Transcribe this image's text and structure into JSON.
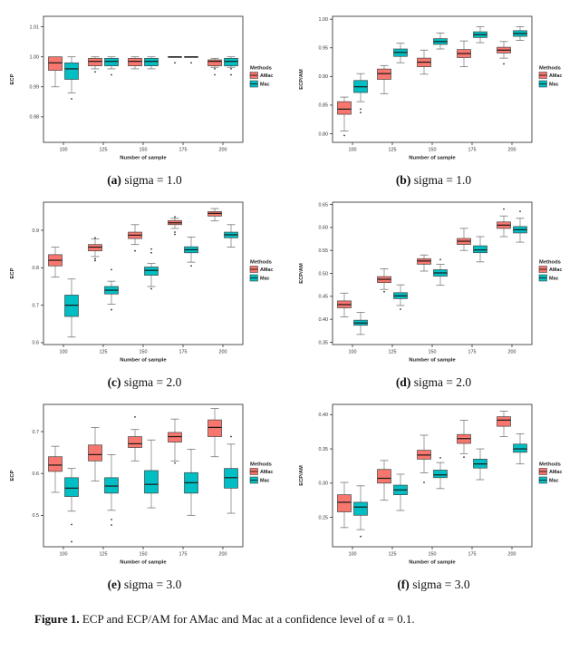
{
  "figure_caption": {
    "label": "Figure 1.",
    "text": " ECP and ECP/AM for AMac and Mac at a confidence level of α = 0.1."
  },
  "legend": {
    "title": "Methods",
    "entries": [
      {
        "label": "AMac",
        "color": "#F8766D"
      },
      {
        "label": "Mac",
        "color": "#00BFC4"
      }
    ]
  },
  "colors": {
    "amac": "#F8766D",
    "mac": "#00BFC4",
    "box_stroke": "#444444",
    "median": "#1a1a1a",
    "whisker": "#777777",
    "panel_border": "#3c3c3c"
  },
  "chart_data": [
    {
      "id": "a",
      "type": "boxplot",
      "caption_label": "(a)",
      "caption_text": " sigma = 1.0",
      "title": "",
      "xlabel": "Number of sample",
      "ylabel": "ECP",
      "categories": [
        "100",
        "125",
        "150",
        "175",
        "200"
      ],
      "ylim": [
        0.9715,
        1.0135
      ],
      "yticks": [
        1.01,
        1.0,
        0.99,
        0.98
      ],
      "ytick_labels": [
        "1.01",
        "1.00",
        "0.99",
        "0.98"
      ],
      "legend_position": "right",
      "grid": false,
      "series": [
        {
          "name": "AMac",
          "boxes": [
            [
              0.99,
              0.9955,
              0.998,
              1.0,
              1.0
            ],
            [
              0.996,
              0.997,
              0.9985,
              0.9995,
              1.0
            ],
            [
              0.996,
              0.997,
              0.9985,
              0.9995,
              1.0
            ],
            [
              1.0,
              1.0,
              1.0,
              1.0,
              1.0
            ],
            [
              0.9965,
              0.997,
              0.9985,
              0.999,
              0.9995
            ]
          ],
          "outliers": [
            [],
            [
              0.995
            ],
            [],
            [
              0.998
            ],
            [
              0.996,
              0.994
            ]
          ]
        },
        {
          "name": "Mac",
          "boxes": [
            [
              0.988,
              0.9925,
              0.996,
              0.998,
              1.0
            ],
            [
              0.996,
              0.997,
              0.9985,
              0.9995,
              1.0
            ],
            [
              0.996,
              0.997,
              0.9985,
              0.9995,
              1.0
            ],
            [
              1.0,
              1.0,
              1.0,
              1.0,
              1.0
            ],
            [
              0.9965,
              0.997,
              0.9985,
              0.9995,
              1.0
            ]
          ],
          "outliers": [
            [
              0.986
            ],
            [
              0.994
            ],
            [],
            [
              0.998
            ],
            [
              0.996,
              0.994
            ]
          ]
        }
      ]
    },
    {
      "id": "b",
      "type": "boxplot",
      "caption_label": "(b)",
      "caption_text": " sigma = 1.0",
      "title": "",
      "xlabel": "Number of sample",
      "ylabel": "ECP/AM",
      "categories": [
        "100",
        "125",
        "150",
        "175",
        "200"
      ],
      "ylim": [
        0.785,
        1.005
      ],
      "yticks": [
        1.0,
        0.95,
        0.9,
        0.85,
        0.8
      ],
      "ytick_labels": [
        "1.00",
        "0.95",
        "0.90",
        "0.85",
        "0.80"
      ],
      "legend_position": "right",
      "grid": false,
      "series": [
        {
          "name": "AMac",
          "boxes": [
            [
              0.805,
              0.834,
              0.843,
              0.856,
              0.864
            ],
            [
              0.87,
              0.895,
              0.905,
              0.913,
              0.919
            ],
            [
              0.904,
              0.917,
              0.925,
              0.932,
              0.946
            ],
            [
              0.917,
              0.933,
              0.94,
              0.947,
              0.962
            ],
            [
              0.932,
              0.941,
              0.946,
              0.951,
              0.961
            ]
          ],
          "outliers": [
            [
              0.797
            ],
            [],
            [],
            [],
            [
              0.922
            ]
          ]
        },
        {
          "name": "Mac",
          "boxes": [
            [
              0.856,
              0.872,
              0.882,
              0.893,
              0.905
            ],
            [
              0.924,
              0.935,
              0.942,
              0.948,
              0.958
            ],
            [
              0.948,
              0.956,
              0.961,
              0.966,
              0.976
            ],
            [
              0.959,
              0.968,
              0.973,
              0.978,
              0.987
            ],
            [
              0.963,
              0.97,
              0.975,
              0.98,
              0.987
            ]
          ],
          "outliers": [
            [
              0.843,
              0.837
            ],
            [],
            [],
            [],
            []
          ]
        }
      ]
    },
    {
      "id": "c",
      "type": "boxplot",
      "caption_label": "(c)",
      "caption_text": " sigma = 2.0",
      "title": "",
      "xlabel": "Number of sample",
      "ylabel": "ECP",
      "categories": [
        "100",
        "125",
        "150",
        "175",
        "200"
      ],
      "ylim": [
        0.595,
        0.975
      ],
      "yticks": [
        0.9,
        0.8,
        0.7,
        0.6
      ],
      "ytick_labels": [
        "0.9",
        "0.8",
        "0.7",
        "0.6"
      ],
      "legend_position": "right",
      "grid": false,
      "series": [
        {
          "name": "AMac",
          "boxes": [
            [
              0.775,
              0.805,
              0.82,
              0.835,
              0.855
            ],
            [
              0.83,
              0.845,
              0.855,
              0.862,
              0.877
            ],
            [
              0.862,
              0.878,
              0.887,
              0.895,
              0.915
            ],
            [
              0.905,
              0.915,
              0.92,
              0.926,
              0.932
            ],
            [
              0.925,
              0.938,
              0.945,
              0.95,
              0.958
            ]
          ],
          "outliers": [
            [],
            [
              0.88,
              0.824,
              0.819
            ],
            [
              0.845
            ],
            [
              0.936,
              0.895,
              0.889
            ],
            []
          ]
        },
        {
          "name": "Mac",
          "boxes": [
            [
              0.615,
              0.67,
              0.7,
              0.727,
              0.77
            ],
            [
              0.703,
              0.73,
              0.74,
              0.75,
              0.764
            ],
            [
              0.75,
              0.78,
              0.793,
              0.802,
              0.812
            ],
            [
              0.815,
              0.84,
              0.848,
              0.856,
              0.882
            ],
            [
              0.855,
              0.88,
              0.888,
              0.895,
              0.915
            ]
          ],
          "outliers": [
            [],
            [
              0.795,
              0.688
            ],
            [
              0.85,
              0.84,
              0.744
            ],
            [
              0.805
            ],
            []
          ]
        }
      ]
    },
    {
      "id": "d",
      "type": "boxplot",
      "caption_label": "(d)",
      "caption_text": " sigma = 2.0",
      "title": "",
      "xlabel": "Number of sample",
      "ylabel": "ECP/AM",
      "categories": [
        "100",
        "125",
        "150",
        "175",
        "200"
      ],
      "ylim": [
        0.345,
        0.655
      ],
      "yticks": [
        0.65,
        0.6,
        0.55,
        0.5,
        0.45,
        0.4,
        0.35
      ],
      "ytick_labels": [
        "0.65",
        "0.60",
        "0.55",
        "0.50",
        "0.45",
        "0.40",
        "0.35"
      ],
      "legend_position": "right",
      "grid": false,
      "series": [
        {
          "name": "AMac",
          "boxes": [
            [
              0.405,
              0.425,
              0.432,
              0.44,
              0.457
            ],
            [
              0.465,
              0.48,
              0.487,
              0.493,
              0.51
            ],
            [
              0.505,
              0.52,
              0.527,
              0.532,
              0.54
            ],
            [
              0.55,
              0.563,
              0.57,
              0.576,
              0.598
            ],
            [
              0.58,
              0.598,
              0.605,
              0.612,
              0.625
            ]
          ],
          "outliers": [
            [],
            [
              0.46
            ],
            [],
            [],
            [
              0.64
            ]
          ]
        },
        {
          "name": "Mac",
          "boxes": [
            [
              0.367,
              0.387,
              0.392,
              0.398,
              0.415
            ],
            [
              0.43,
              0.445,
              0.451,
              0.458,
              0.475
            ],
            [
              0.474,
              0.494,
              0.501,
              0.508,
              0.52
            ],
            [
              0.525,
              0.545,
              0.551,
              0.56,
              0.58
            ],
            [
              0.568,
              0.588,
              0.595,
              0.602,
              0.62
            ]
          ],
          "outliers": [
            [],
            [
              0.422
            ],
            [
              0.53
            ],
            [],
            [
              0.635
            ]
          ]
        }
      ]
    },
    {
      "id": "e",
      "type": "boxplot",
      "caption_label": "(e)",
      "caption_text": " sigma = 3.0",
      "title": "",
      "xlabel": "Number of sample",
      "ylabel": "ECP",
      "categories": [
        "100",
        "125",
        "150",
        "175",
        "200"
      ],
      "ylim": [
        0.425,
        0.765
      ],
      "yticks": [
        0.7,
        0.6,
        0.5
      ],
      "ytick_labels": [
        "0.7",
        "0.6",
        "0.5"
      ],
      "legend_position": "right",
      "grid": false,
      "series": [
        {
          "name": "AMac",
          "boxes": [
            [
              0.555,
              0.605,
              0.62,
              0.64,
              0.665
            ],
            [
              0.582,
              0.63,
              0.645,
              0.668,
              0.71
            ],
            [
              0.63,
              0.662,
              0.671,
              0.688,
              0.705
            ],
            [
              0.63,
              0.675,
              0.688,
              0.698,
              0.73
            ],
            [
              0.64,
              0.688,
              0.71,
              0.728,
              0.755
            ]
          ],
          "outliers": [
            [],
            [],
            [
              0.735
            ],
            [
              0.625
            ],
            []
          ]
        },
        {
          "name": "Mac",
          "boxes": [
            [
              0.51,
              0.545,
              0.565,
              0.59,
              0.612
            ],
            [
              0.512,
              0.553,
              0.57,
              0.59,
              0.645
            ],
            [
              0.518,
              0.553,
              0.574,
              0.607,
              0.68
            ],
            [
              0.5,
              0.553,
              0.578,
              0.602,
              0.658
            ],
            [
              0.505,
              0.565,
              0.59,
              0.612,
              0.67
            ]
          ],
          "outliers": [
            [
              0.478,
              0.437
            ],
            [
              0.49,
              0.477
            ],
            [],
            [],
            [
              0.688
            ]
          ]
        }
      ]
    },
    {
      "id": "f",
      "type": "boxplot",
      "caption_label": "(f)",
      "caption_text": " sigma = 3.0",
      "title": "",
      "xlabel": "Number of sample",
      "ylabel": "ECP/AM",
      "categories": [
        "100",
        "125",
        "150",
        "175",
        "200"
      ],
      "ylim": [
        0.207,
        0.415
      ],
      "yticks": [
        0.4,
        0.35,
        0.3,
        0.25
      ],
      "ytick_labels": [
        "0.40",
        "0.35",
        "0.30",
        "0.25"
      ],
      "legend_position": "right",
      "grid": false,
      "series": [
        {
          "name": "AMac",
          "boxes": [
            [
              0.235,
              0.258,
              0.272,
              0.283,
              0.301
            ],
            [
              0.275,
              0.3,
              0.307,
              0.32,
              0.333
            ],
            [
              0.315,
              0.335,
              0.341,
              0.348,
              0.37
            ],
            [
              0.343,
              0.358,
              0.365,
              0.371,
              0.392
            ],
            [
              0.368,
              0.383,
              0.392,
              0.397,
              0.405
            ]
          ],
          "outliers": [
            [],
            [],
            [
              0.301
            ],
            [
              0.338
            ],
            []
          ]
        },
        {
          "name": "Mac",
          "boxes": [
            [
              0.232,
              0.253,
              0.265,
              0.272,
              0.296
            ],
            [
              0.26,
              0.283,
              0.29,
              0.297,
              0.313
            ],
            [
              0.292,
              0.308,
              0.312,
              0.319,
              0.33
            ],
            [
              0.305,
              0.322,
              0.328,
              0.335,
              0.35
            ],
            [
              0.328,
              0.345,
              0.35,
              0.357,
              0.372
            ]
          ],
          "outliers": [
            [
              0.222
            ],
            [],
            [
              0.337
            ],
            [],
            []
          ]
        }
      ]
    }
  ]
}
